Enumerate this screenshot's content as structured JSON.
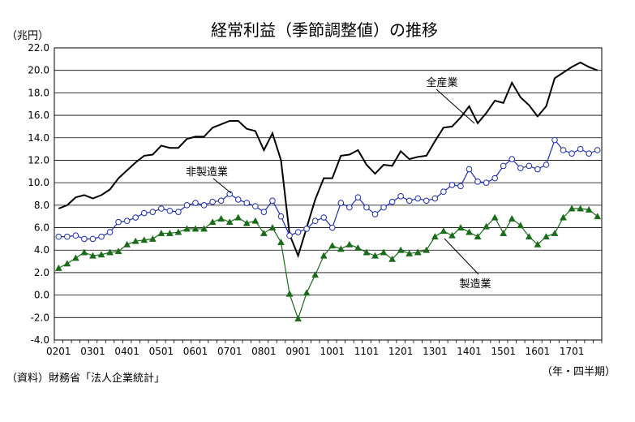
{
  "chart_data": {
    "type": "line",
    "title": "経常利益（季節調整値）の推移",
    "ylabel": "（兆円）",
    "xlabel": "（年・四半期）",
    "source": "（資料）財務省「法人企業統計」",
    "ylim": [
      -4.0,
      22.0
    ],
    "ytick_step": 2.0,
    "y_ticks": [
      "22.0",
      "20.0",
      "18.0",
      "16.0",
      "14.0",
      "12.0",
      "10.0",
      "8.0",
      "6.0",
      "4.0",
      "2.0",
      "0.0",
      "-2.0",
      "-4.0"
    ],
    "x_tick_labels": [
      "0201",
      "0301",
      "0401",
      "0501",
      "0601",
      "0701",
      "0801",
      "0901",
      "1001",
      "1101",
      "1201",
      "1301",
      "1401",
      "1501",
      "1601",
      "1701"
    ],
    "x_start_index": 0,
    "points_per_tick": 4,
    "num_points": 64,
    "grid": true,
    "series": [
      {
        "name": "全産業",
        "color": "#000000",
        "marker": "none",
        "values": [
          7.7,
          8.0,
          8.7,
          8.9,
          8.6,
          8.9,
          9.4,
          10.4,
          11.1,
          11.8,
          12.4,
          12.5,
          13.3,
          13.1,
          13.1,
          13.9,
          14.1,
          14.1,
          14.9,
          15.2,
          15.5,
          15.5,
          14.8,
          14.6,
          12.9,
          14.4,
          12.0,
          5.4,
          3.5,
          6.0,
          8.5,
          10.4,
          10.4,
          12.4,
          12.5,
          12.9,
          11.6,
          10.8,
          11.6,
          11.5,
          12.8,
          12.1,
          12.3,
          12.4,
          13.7,
          14.9,
          15.0,
          15.8,
          16.8,
          15.3,
          16.2,
          17.3,
          17.1,
          18.9,
          17.6,
          16.9,
          15.9,
          16.8,
          19.3,
          19.8,
          20.3,
          20.7,
          20.3,
          20.0
        ]
      },
      {
        "name": "非製造業",
        "color": "#1f2fa8",
        "marker": "circle",
        "values": [
          5.2,
          5.2,
          5.3,
          5.0,
          5.0,
          5.2,
          5.6,
          6.5,
          6.6,
          6.9,
          7.3,
          7.4,
          7.7,
          7.5,
          7.4,
          8.0,
          8.2,
          8.0,
          8.3,
          8.4,
          9.0,
          8.5,
          8.2,
          7.9,
          7.4,
          8.4,
          7.0,
          5.3,
          5.6,
          5.9,
          6.6,
          6.9,
          6.0,
          8.2,
          7.8,
          8.7,
          7.8,
          7.2,
          7.8,
          8.3,
          8.8,
          8.4,
          8.6,
          8.4,
          8.6,
          9.2,
          9.8,
          9.7,
          11.2,
          10.1,
          10.0,
          10.4,
          11.5,
          12.1,
          11.3,
          11.5,
          11.2,
          11.6,
          13.8,
          12.9,
          12.6,
          13.0,
          12.6,
          12.9
        ]
      },
      {
        "name": "製造業",
        "color": "#1a6b1a",
        "marker": "triangle",
        "values": [
          2.4,
          2.8,
          3.3,
          3.8,
          3.5,
          3.6,
          3.8,
          3.9,
          4.5,
          4.8,
          4.9,
          5.0,
          5.5,
          5.5,
          5.6,
          5.9,
          5.9,
          5.9,
          6.5,
          6.8,
          6.5,
          6.9,
          6.4,
          6.6,
          5.5,
          6.0,
          4.7,
          0.1,
          -2.1,
          0.2,
          1.8,
          3.5,
          4.4,
          4.1,
          4.5,
          4.2,
          3.8,
          3.5,
          3.8,
          3.2,
          4.0,
          3.7,
          3.8,
          4.0,
          5.2,
          5.7,
          5.3,
          6.0,
          5.6,
          5.2,
          6.1,
          6.9,
          5.5,
          6.8,
          6.2,
          5.2,
          4.5,
          5.2,
          5.5,
          6.9,
          7.7,
          7.7,
          7.6,
          7.0
        ]
      }
    ],
    "annotations": [
      {
        "text": "全産業",
        "series": "全産業"
      },
      {
        "text": "非製造業",
        "series": "非製造業"
      },
      {
        "text": "製造業",
        "series": "製造業"
      }
    ]
  }
}
